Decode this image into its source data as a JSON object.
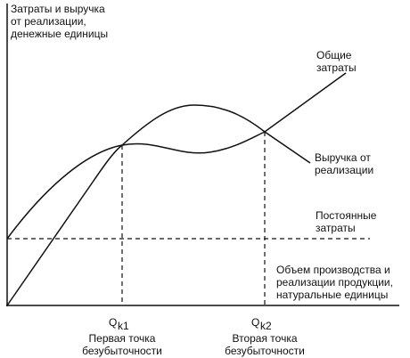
{
  "y_axis_label": [
    "Затраты и выручка",
    "от реализации,",
    "денежные единицы"
  ],
  "x_axis_label": [
    "Объем производства и",
    "реализации продукции,",
    "натуральные единицы"
  ],
  "curves": {
    "total_costs": [
      "Общие",
      "затраты"
    ],
    "revenue": [
      "Выручка от",
      "реализации"
    ],
    "fixed_costs": [
      "Постоянные",
      "затраты"
    ]
  },
  "points": [
    {
      "symbol": "Q",
      "subscript": "k1",
      "caption": [
        "Первая точка",
        "безубыточности"
      ]
    },
    {
      "symbol": "Q",
      "subscript": "k2",
      "caption": [
        "Вторая точка",
        "безубыточности"
      ]
    }
  ]
}
